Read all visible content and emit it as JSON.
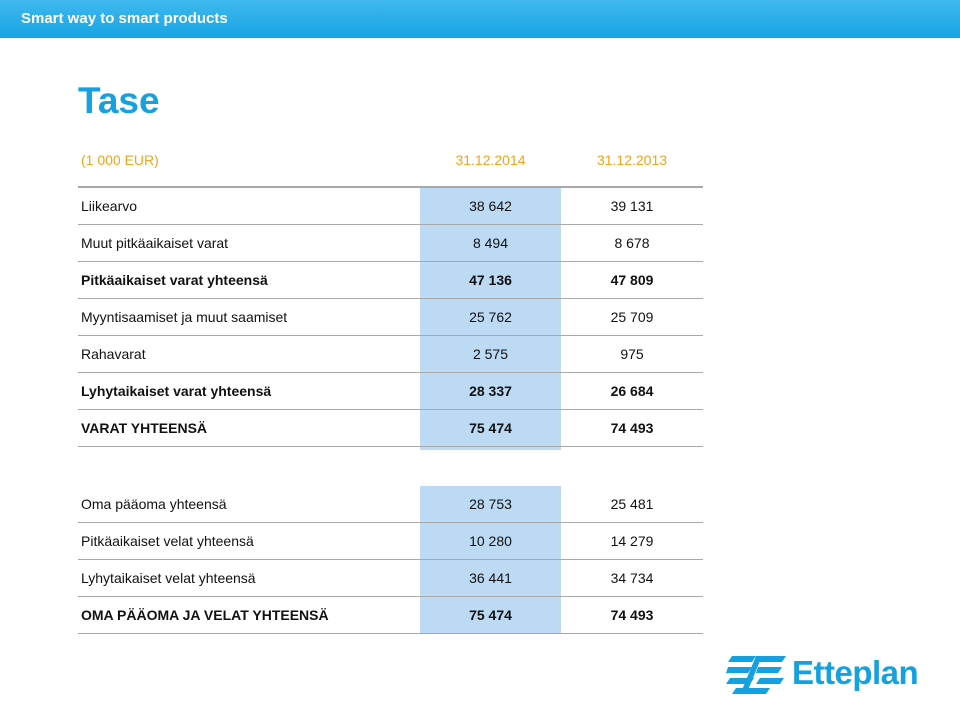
{
  "header": {
    "tagline": "Smart way to smart products"
  },
  "page": {
    "title": "Tase"
  },
  "table": {
    "unit": "(1 000 EUR)",
    "col1": "31.12.2014",
    "col2": "31.12.2013",
    "assets": [
      {
        "label": "Liikearvo",
        "v1": "38 642",
        "v2": "39 131",
        "bold": false
      },
      {
        "label": "Muut pitkäaikaiset varat",
        "v1": "8 494",
        "v2": "8 678",
        "bold": false
      },
      {
        "label": "Pitkäaikaiset varat yhteensä",
        "v1": "47 136",
        "v2": "47 809",
        "bold": true
      },
      {
        "label": "Myyntisaamiset ja muut saamiset",
        "v1": "25 762",
        "v2": "25 709",
        "bold": false
      },
      {
        "label": "Rahavarat",
        "v1": "2 575",
        "v2": "975",
        "bold": false
      },
      {
        "label": "Lyhytaikaiset varat yhteensä",
        "v1": "28 337",
        "v2": "26 684",
        "bold": true
      },
      {
        "label": "VARAT YHTEENSÄ",
        "v1": "75 474",
        "v2": "74 493",
        "bold": true
      }
    ],
    "liabilities": [
      {
        "label": "Oma pääoma yhteensä",
        "v1": "28 753",
        "v2": "25 481",
        "bold": false
      },
      {
        "label": "Pitkäaikaiset velat yhteensä",
        "v1": "10 280",
        "v2": "14 279",
        "bold": false
      },
      {
        "label": "Lyhytaikaiset velat yhteensä",
        "v1": "36 441",
        "v2": "34 734",
        "bold": false
      },
      {
        "label": "OMA PÄÄOMA JA VELAT YHTEENSÄ",
        "v1": "75 474",
        "v2": "74 493",
        "bold": true
      }
    ]
  },
  "logo": {
    "text": "Etteplan",
    "color": "#15a1e0",
    "icon": "etteplan-mark-icon"
  },
  "colors": {
    "accent": "#15a1e0",
    "header_text": "#f2a21b",
    "highlight_column": "#bcdaf3"
  }
}
